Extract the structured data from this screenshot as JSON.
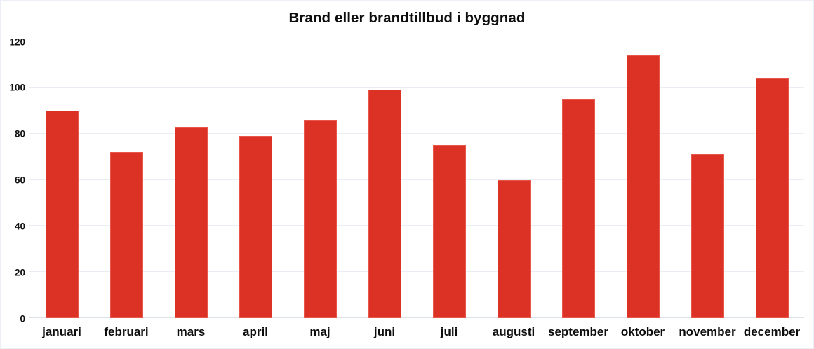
{
  "chart_data": {
    "type": "bar",
    "title": "Brand eller brandtillbud i byggnad",
    "categories": [
      "januari",
      "februari",
      "mars",
      "april",
      "maj",
      "juni",
      "juli",
      "augusti",
      "september",
      "oktober",
      "november",
      "december"
    ],
    "values": [
      90,
      72,
      83,
      79,
      86,
      99,
      75,
      60,
      95,
      114,
      71,
      104
    ],
    "xlabel": "",
    "ylabel": "",
    "ylim": [
      0,
      120
    ],
    "yticks": [
      0,
      20,
      40,
      60,
      80,
      100,
      120
    ],
    "grid": "horizontal",
    "legend": "none",
    "bar_color": "#dc3226",
    "bar_edge_color": "#e8564a",
    "gridline_color": "#eaedf3",
    "background_color": "#ffffff",
    "text_color": "#0d0d0d"
  }
}
